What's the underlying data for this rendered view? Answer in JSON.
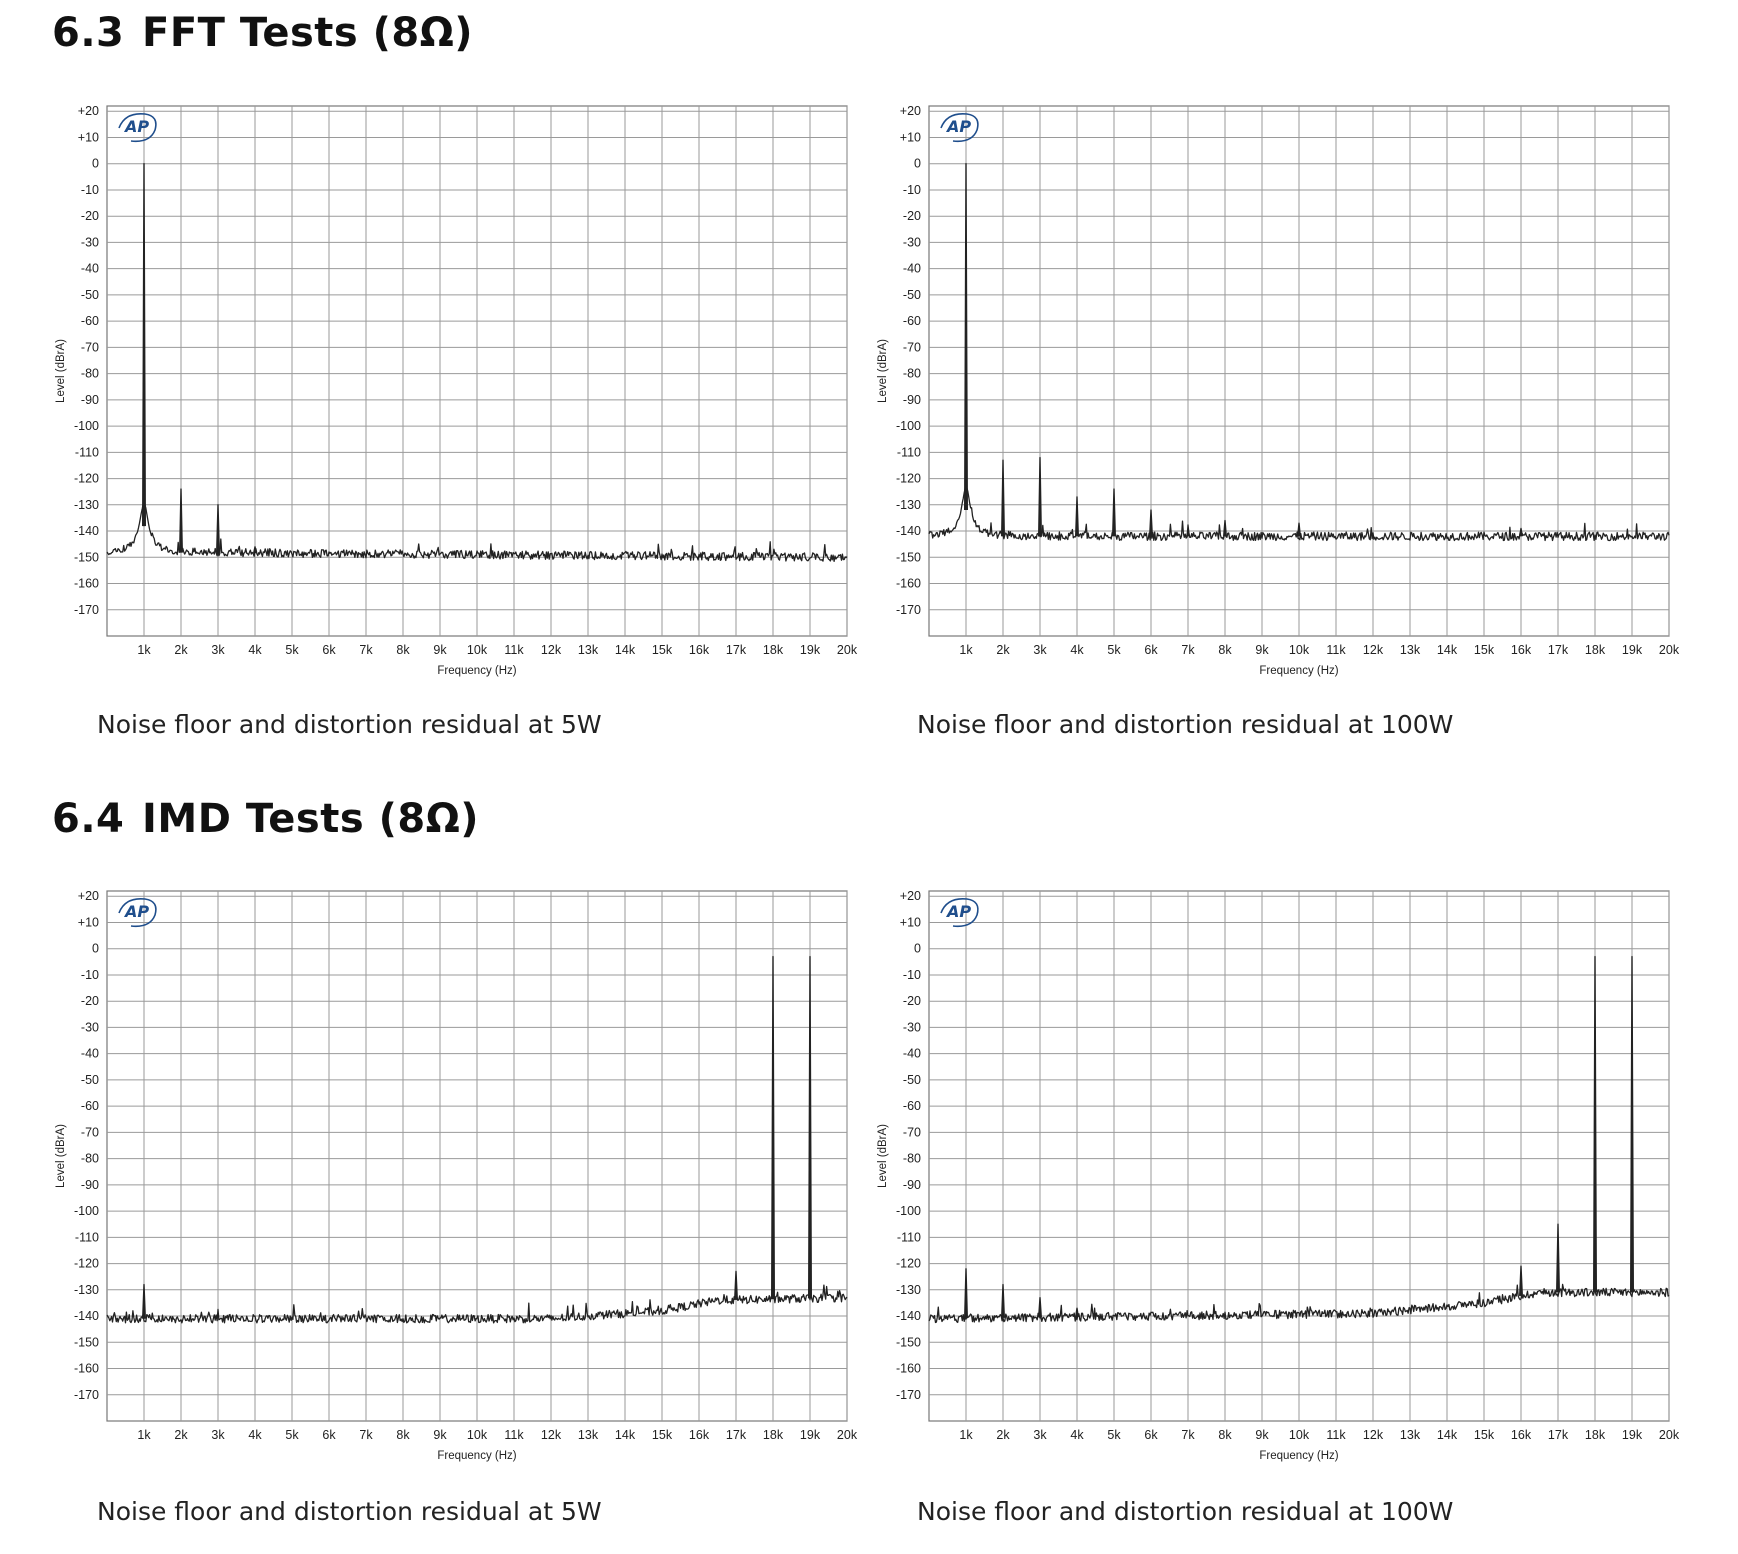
{
  "sections": [
    {
      "number": "6.3",
      "title": "FFT Tests (8Ω)"
    },
    {
      "number": "6.4",
      "title": "IMD Tests (8Ω)"
    }
  ],
  "captions": [
    "Noise floor and distortion residual at 5W",
    "Noise floor and distortion residual at 100W",
    "Noise floor and distortion residual at 5W",
    "Noise floor and distortion residual at 100W"
  ],
  "logo": {
    "text": "AP",
    "color": "#1f4e8c"
  },
  "chart_data": [
    {
      "type": "line",
      "xlabel": "Frequency (Hz)",
      "ylabel": "Level (dBrA)",
      "xlim": [
        0,
        20000
      ],
      "ylim": [
        -180,
        22
      ],
      "x_ticks": [
        1000,
        2000,
        3000,
        4000,
        5000,
        6000,
        7000,
        8000,
        9000,
        10000,
        11000,
        12000,
        13000,
        14000,
        15000,
        16000,
        17000,
        18000,
        19000,
        20000
      ],
      "x_tick_labels": [
        "1k",
        "2k",
        "3k",
        "4k",
        "5k",
        "6k",
        "7k",
        "8k",
        "9k",
        "10k",
        "11k",
        "12k",
        "13k",
        "14k",
        "15k",
        "16k",
        "17k",
        "18k",
        "19k",
        "20k"
      ],
      "y_ticks": [
        20,
        10,
        0,
        -10,
        -20,
        -30,
        -40,
        -50,
        -60,
        -70,
        -80,
        -90,
        -100,
        -110,
        -120,
        -130,
        -140,
        -150,
        -160,
        -170
      ],
      "y_tick_labels": [
        "+20",
        "+10",
        "0",
        "-10",
        "-20",
        "-30",
        "-40",
        "-50",
        "-60",
        "-70",
        "-80",
        "-90",
        "-100",
        "-110",
        "-120",
        "-130",
        "-140",
        "-150",
        "-160",
        "-170"
      ],
      "grid": true,
      "noise_floor": [
        [
          0,
          -148
        ],
        [
          20000,
          -150
        ]
      ],
      "peaks": [
        [
          1000,
          0
        ],
        [
          2000,
          -124
        ],
        [
          3000,
          -130
        ],
        [
          4000,
          -146
        ]
      ],
      "skirt_peaks": [
        1000
      ]
    },
    {
      "type": "line",
      "xlabel": "Frequency (Hz)",
      "ylabel": "Level (dBrA)",
      "xlim": [
        0,
        20000
      ],
      "ylim": [
        -180,
        22
      ],
      "x_ticks": [
        1000,
        2000,
        3000,
        4000,
        5000,
        6000,
        7000,
        8000,
        9000,
        10000,
        11000,
        12000,
        13000,
        14000,
        15000,
        16000,
        17000,
        18000,
        19000,
        20000
      ],
      "x_tick_labels": [
        "1k",
        "2k",
        "3k",
        "4k",
        "5k",
        "6k",
        "7k",
        "8k",
        "9k",
        "10k",
        "11k",
        "12k",
        "13k",
        "14k",
        "15k",
        "16k",
        "17k",
        "18k",
        "19k",
        "20k"
      ],
      "y_ticks": [
        20,
        10,
        0,
        -10,
        -20,
        -30,
        -40,
        -50,
        -60,
        -70,
        -80,
        -90,
        -100,
        -110,
        -120,
        -130,
        -140,
        -150,
        -160,
        -170
      ],
      "y_tick_labels": [
        "+20",
        "+10",
        "0",
        "-10",
        "-20",
        "-30",
        "-40",
        "-50",
        "-60",
        "-70",
        "-80",
        "-90",
        "-100",
        "-110",
        "-120",
        "-130",
        "-140",
        "-150",
        "-160",
        "-170"
      ],
      "grid": true,
      "noise_floor": [
        [
          0,
          -142
        ],
        [
          20000,
          -142
        ]
      ],
      "peaks": [
        [
          1000,
          0
        ],
        [
          2000,
          -113
        ],
        [
          3000,
          -112
        ],
        [
          4000,
          -127
        ],
        [
          5000,
          -124
        ],
        [
          6000,
          -132
        ],
        [
          7000,
          -140
        ],
        [
          8000,
          -136
        ],
        [
          10000,
          -137
        ],
        [
          16000,
          -139
        ]
      ],
      "skirt_peaks": [
        1000
      ]
    },
    {
      "type": "line",
      "xlabel": "Frequency (Hz)",
      "ylabel": "Level (dBrA)",
      "xlim": [
        0,
        20000
      ],
      "ylim": [
        -180,
        22
      ],
      "x_ticks": [
        1000,
        2000,
        3000,
        4000,
        5000,
        6000,
        7000,
        8000,
        9000,
        10000,
        11000,
        12000,
        13000,
        14000,
        15000,
        16000,
        17000,
        18000,
        19000,
        20000
      ],
      "x_tick_labels": [
        "1k",
        "2k",
        "3k",
        "4k",
        "5k",
        "6k",
        "7k",
        "8k",
        "9k",
        "10k",
        "11k",
        "12k",
        "13k",
        "14k",
        "15k",
        "16k",
        "17k",
        "18k",
        "19k",
        "20k"
      ],
      "y_ticks": [
        20,
        10,
        0,
        -10,
        -20,
        -30,
        -40,
        -50,
        -60,
        -70,
        -80,
        -90,
        -100,
        -110,
        -120,
        -130,
        -140,
        -150,
        -160,
        -170
      ],
      "y_tick_labels": [
        "+20",
        "+10",
        "0",
        "-10",
        "-20",
        "-30",
        "-40",
        "-50",
        "-60",
        "-70",
        "-80",
        "-90",
        "-100",
        "-110",
        "-120",
        "-130",
        "-140",
        "-150",
        "-160",
        "-170"
      ],
      "grid": true,
      "noise_floor": [
        [
          0,
          -141
        ],
        [
          12000,
          -141
        ],
        [
          15000,
          -138
        ],
        [
          16500,
          -134
        ],
        [
          20000,
          -133
        ]
      ],
      "peaks": [
        [
          1000,
          -128
        ],
        [
          17000,
          -123
        ],
        [
          18000,
          -3
        ],
        [
          19000,
          -3
        ]
      ],
      "skirt_peaks": []
    },
    {
      "type": "line",
      "xlabel": "Frequency (Hz)",
      "ylabel": "Level (dBrA)",
      "xlim": [
        0,
        20000
      ],
      "ylim": [
        -180,
        22
      ],
      "x_ticks": [
        1000,
        2000,
        3000,
        4000,
        5000,
        6000,
        7000,
        8000,
        9000,
        10000,
        11000,
        12000,
        13000,
        14000,
        15000,
        16000,
        17000,
        18000,
        19000,
        20000
      ],
      "x_tick_labels": [
        "1k",
        "2k",
        "3k",
        "4k",
        "5k",
        "6k",
        "7k",
        "8k",
        "9k",
        "10k",
        "11k",
        "12k",
        "13k",
        "14k",
        "15k",
        "16k",
        "17k",
        "18k",
        "19k",
        "20k"
      ],
      "y_ticks": [
        20,
        10,
        0,
        -10,
        -20,
        -30,
        -40,
        -50,
        -60,
        -70,
        -80,
        -90,
        -100,
        -110,
        -120,
        -130,
        -140,
        -150,
        -160,
        -170
      ],
      "y_tick_labels": [
        "+20",
        "+10",
        "0",
        "-10",
        "-20",
        "-30",
        "-40",
        "-50",
        "-60",
        "-70",
        "-80",
        "-90",
        "-100",
        "-110",
        "-120",
        "-130",
        "-140",
        "-150",
        "-160",
        "-170"
      ],
      "grid": true,
      "noise_floor": [
        [
          0,
          -141
        ],
        [
          12000,
          -139
        ],
        [
          15000,
          -135
        ],
        [
          16500,
          -131
        ],
        [
          20000,
          -131
        ]
      ],
      "peaks": [
        [
          1000,
          -122
        ],
        [
          2000,
          -128
        ],
        [
          3000,
          -133
        ],
        [
          4000,
          -137
        ],
        [
          16000,
          -121
        ],
        [
          17000,
          -105
        ],
        [
          18000,
          -3
        ],
        [
          19000,
          -3
        ]
      ],
      "skirt_peaks": []
    }
  ]
}
